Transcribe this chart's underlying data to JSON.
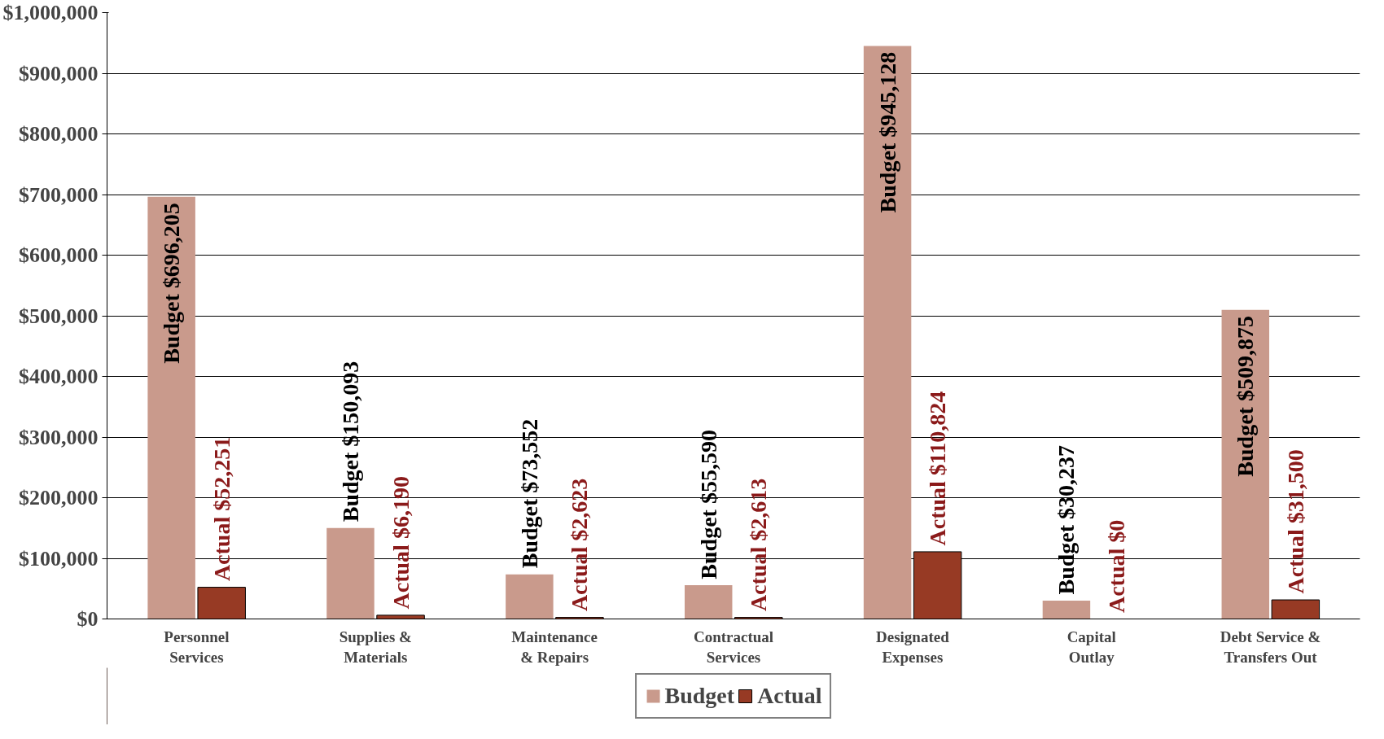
{
  "chart_data": {
    "type": "bar",
    "categories": [
      "Personnel Services",
      "Supplies & Materials",
      "Maintenance & Repairs",
      "Contractual Services",
      "Designated Expenses",
      "Capital Outlay",
      "Debt Service & Transfers Out"
    ],
    "series": [
      {
        "name": "Budget",
        "color": "#c99a8c",
        "values": [
          696205,
          150093,
          73552,
          55590,
          945128,
          30237,
          509875
        ],
        "value_labels": [
          "Budget $696,205",
          "Budget $150,093",
          "Budget $73,552",
          "Budget $55,590",
          "Budget $945,128",
          "Budget $30,237",
          "Budget $509,875"
        ]
      },
      {
        "name": "Actual",
        "color": "#973a24",
        "values": [
          52251,
          6190,
          2623,
          2613,
          110824,
          0,
          31500
        ],
        "value_labels": [
          "Actual $52,251",
          "Actual $6,190",
          "Actual $2,623",
          "Actual $2,613",
          "Actual $110,824",
          "Actual $0",
          "Actual $31,500"
        ]
      }
    ],
    "ylim": [
      0,
      1000000
    ],
    "yticks": [
      {
        "value": 0,
        "label": "$0"
      },
      {
        "value": 100000,
        "label": "$100,000"
      },
      {
        "value": 200000,
        "label": "$200,000"
      },
      {
        "value": 300000,
        "label": "$300,000"
      },
      {
        "value": 400000,
        "label": "$400,000"
      },
      {
        "value": 500000,
        "label": "$500,000"
      },
      {
        "value": 600000,
        "label": "$600,000"
      },
      {
        "value": 700000,
        "label": "$700,000"
      },
      {
        "value": 800000,
        "label": "$800,000"
      },
      {
        "value": 900000,
        "label": "$900,000"
      },
      {
        "value": 1000000,
        "label": "$1,000,000"
      }
    ],
    "grid": "y",
    "legend": "bottom"
  }
}
